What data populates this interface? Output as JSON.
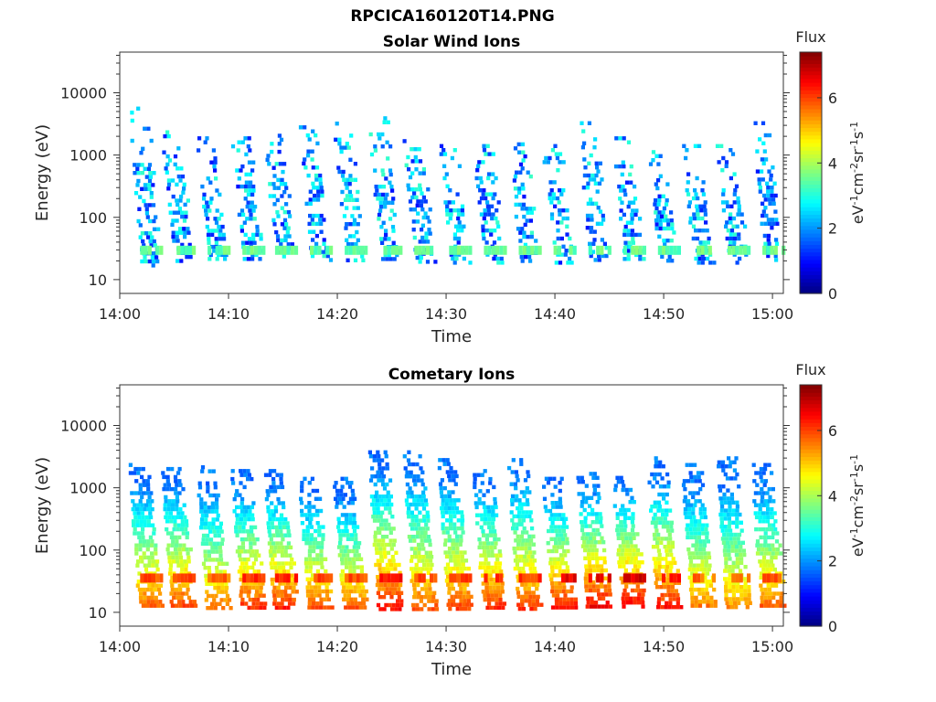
{
  "figure": {
    "title_line1": "RPCICA160120T14.PNG"
  },
  "colorbar_scale": {
    "label": "Flux",
    "units": "eV-1cm-2sr-1s-1",
    "range": [
      0,
      7.4
    ],
    "ticks": [
      "0",
      "2",
      "4",
      "6"
    ],
    "colormap": "jet"
  },
  "chart_data": [
    {
      "type": "heatmap",
      "title": "Solar Wind Ions",
      "xlabel": "Time",
      "ylabel": "Energy (eV)",
      "y_scale": "log",
      "ylim": [
        6,
        45000
      ],
      "y_ticks": [
        "10",
        "100",
        "1000",
        "10000"
      ],
      "x_ticks": [
        "14:00",
        "14:10",
        "14:20",
        "14:30",
        "14:40",
        "14:50",
        "15:00"
      ],
      "xlim": [
        "14:00",
        "15:01"
      ],
      "grid": false,
      "burst_period_min": 3.2,
      "bursts": [
        {
          "time": "14:02.8",
          "flux_range": [
            1,
            3.2
          ],
          "energy_range": [
            18,
            6000
          ]
        },
        {
          "time": "14:05.8",
          "flux_range": [
            1,
            3.2
          ],
          "energy_range": [
            20,
            2500
          ]
        },
        {
          "time": "14:09.0",
          "flux_range": [
            1,
            3.2
          ],
          "energy_range": [
            20,
            2000
          ]
        },
        {
          "time": "14:12.2",
          "flux_range": [
            1,
            3.2
          ],
          "energy_range": [
            20,
            2000
          ]
        },
        {
          "time": "14:15.2",
          "flux_range": [
            1,
            3.2
          ],
          "energy_range": [
            20,
            2200
          ]
        },
        {
          "time": "14:18.4",
          "flux_range": [
            1,
            3.2
          ],
          "energy_range": [
            20,
            3000
          ]
        },
        {
          "time": "14:21.6",
          "flux_range": [
            1,
            3.2
          ],
          "energy_range": [
            20,
            4000
          ]
        },
        {
          "time": "14:24.8",
          "flux_range": [
            1,
            3.2
          ],
          "energy_range": [
            20,
            4200
          ]
        },
        {
          "time": "14:28.0",
          "flux_range": [
            1,
            3.2
          ],
          "energy_range": [
            20,
            1800
          ]
        },
        {
          "time": "14:31.2",
          "flux_range": [
            1,
            3.2
          ],
          "energy_range": [
            20,
            1500
          ]
        },
        {
          "time": "14:34.4",
          "flux_range": [
            1,
            3.2
          ],
          "energy_range": [
            20,
            1500
          ]
        },
        {
          "time": "14:37.6",
          "flux_range": [
            1,
            3.2
          ],
          "energy_range": [
            20,
            1600
          ]
        },
        {
          "time": "14:40.8",
          "flux_range": [
            1,
            3.2
          ],
          "energy_range": [
            20,
            1500
          ]
        },
        {
          "time": "14:44.0",
          "flux_range": [
            1,
            3.2
          ],
          "energy_range": [
            20,
            3500
          ]
        },
        {
          "time": "14:47.2",
          "flux_range": [
            1,
            3.2
          ],
          "energy_range": [
            20,
            2000
          ]
        },
        {
          "time": "14:50.4",
          "flux_range": [
            1,
            3.2
          ],
          "energy_range": [
            20,
            1200
          ]
        },
        {
          "time": "14:53.6",
          "flux_range": [
            1,
            3.2
          ],
          "energy_range": [
            20,
            1500
          ]
        },
        {
          "time": "14:56.8",
          "flux_range": [
            1,
            3.2
          ],
          "energy_range": [
            20,
            1500
          ]
        },
        {
          "time": "15:00.0",
          "flux_range": [
            1,
            3.2
          ],
          "energy_range": [
            20,
            3500
          ]
        }
      ]
    },
    {
      "type": "heatmap",
      "title": "Cometary Ions",
      "xlabel": "Time",
      "ylabel": "Energy (eV)",
      "y_scale": "log",
      "ylim": [
        6,
        45000
      ],
      "y_ticks": [
        "10",
        "100",
        "1000",
        "10000"
      ],
      "x_ticks": [
        "14:00",
        "14:10",
        "14:20",
        "14:30",
        "14:40",
        "14:50",
        "15:00"
      ],
      "xlim": [
        "14:00",
        "15:01"
      ],
      "grid": false,
      "burst_period_min": 3.2,
      "bursts": [
        {
          "time": "14:02.8",
          "peak_flux": 6.2,
          "energy_range": [
            12,
            2500
          ]
        },
        {
          "time": "14:05.8",
          "peak_flux": 6.4,
          "energy_range": [
            12,
            2500
          ]
        },
        {
          "time": "14:09.0",
          "peak_flux": 6.0,
          "energy_range": [
            12,
            2300
          ]
        },
        {
          "time": "14:12.2",
          "peak_flux": 6.5,
          "energy_range": [
            12,
            2000
          ]
        },
        {
          "time": "14:15.2",
          "peak_flux": 6.6,
          "energy_range": [
            12,
            2000
          ]
        },
        {
          "time": "14:18.4",
          "peak_flux": 6.3,
          "energy_range": [
            12,
            1500
          ]
        },
        {
          "time": "14:21.6",
          "peak_flux": 6.2,
          "energy_range": [
            12,
            1500
          ]
        },
        {
          "time": "14:24.8",
          "peak_flux": 6.7,
          "energy_range": [
            12,
            4000
          ]
        },
        {
          "time": "14:28.0",
          "peak_flux": 6.2,
          "energy_range": [
            12,
            4000
          ]
        },
        {
          "time": "14:31.2",
          "peak_flux": 6.3,
          "energy_range": [
            12,
            3000
          ]
        },
        {
          "time": "14:34.4",
          "peak_flux": 6.6,
          "energy_range": [
            12,
            2000
          ]
        },
        {
          "time": "14:37.6",
          "peak_flux": 6.4,
          "energy_range": [
            12,
            3000
          ]
        },
        {
          "time": "14:40.8",
          "peak_flux": 6.8,
          "energy_range": [
            12,
            1500
          ]
        },
        {
          "time": "14:44.0",
          "peak_flux": 6.9,
          "energy_range": [
            12,
            1800
          ]
        },
        {
          "time": "14:47.2",
          "peak_flux": 7.0,
          "energy_range": [
            12,
            1800
          ]
        },
        {
          "time": "14:50.4",
          "peak_flux": 6.7,
          "energy_range": [
            12,
            3200
          ]
        },
        {
          "time": "14:53.6",
          "peak_flux": 6.0,
          "energy_range": [
            12,
            2500
          ]
        },
        {
          "time": "14:56.8",
          "peak_flux": 5.8,
          "energy_range": [
            12,
            3200
          ]
        },
        {
          "time": "15:00.0",
          "peak_flux": 6.2,
          "energy_range": [
            12,
            2500
          ]
        }
      ]
    }
  ]
}
